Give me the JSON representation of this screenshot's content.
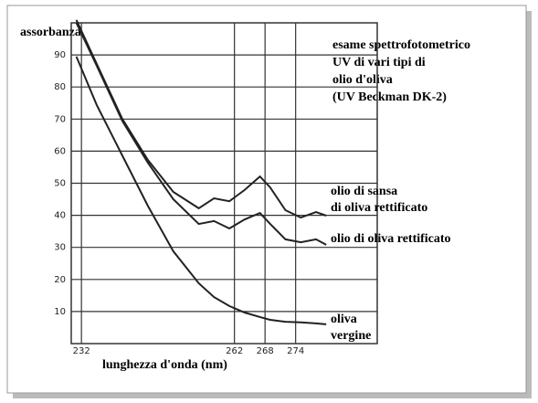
{
  "chart_data": {
    "type": "line",
    "title_lines": [
      "esame spettrofotometrico",
      "UV di vari tipi di",
      "olio d'oliva",
      "(UV Beckman DK-2)"
    ],
    "y_label": "assorbanza",
    "x_label": "lunghezza d'onda (nm)",
    "x": [
      231,
      235,
      240,
      245,
      250,
      255,
      258,
      261,
      264,
      267,
      269,
      272,
      275,
      278,
      280
    ],
    "series": [
      {
        "name": [
          "olio di sansa",
          "di oliva rettificato"
        ],
        "color": "#222",
        "values": [
          100.9,
          87.2,
          70.1,
          57.3,
          47.3,
          42.2,
          45.3,
          44.4,
          47.9,
          52.1,
          48.7,
          41.6,
          39.3,
          41.0,
          39.9
        ]
      },
      {
        "name": [
          "olio di oliva rettificato"
        ],
        "color": "#222",
        "values": [
          100,
          86.6,
          69.5,
          56.4,
          45,
          37.3,
          38.2,
          35.9,
          38.7,
          40.7,
          37.3,
          32.5,
          31.6,
          32.5,
          30.8
        ]
      },
      {
        "name": [
          "oliva",
          "vergine"
        ],
        "color": "#222",
        "values": [
          89.5,
          74.4,
          58.7,
          43,
          28.8,
          18.8,
          14.5,
          11.7,
          9.7,
          8.3,
          7.4,
          6.8,
          6.6,
          6.3,
          6.0
        ]
      }
    ],
    "xlim": [
      230,
      290
    ],
    "ylim": [
      0,
      100
    ],
    "xticks": [
      232,
      262,
      268,
      274
    ],
    "yticks": [
      10,
      20,
      30,
      40,
      50,
      60,
      70,
      80,
      90
    ],
    "grid": true
  }
}
